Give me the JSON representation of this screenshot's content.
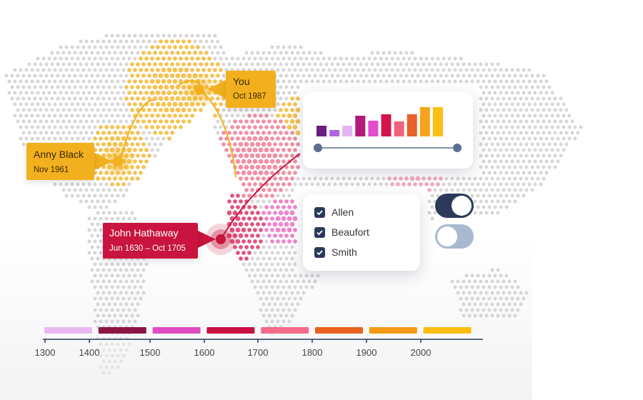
{
  "map": {
    "dot_color": "#cfcfd1"
  },
  "people": [
    {
      "name": "You",
      "dates": "Oct 1987",
      "color": "#f2b01e"
    },
    {
      "name": "Anny Black",
      "dates": "Nov 1961",
      "color": "#f2b01e"
    },
    {
      "name": "John Hathaway",
      "dates": "Jun 1630 – Oct 1705",
      "color": "#c8143e"
    }
  ],
  "chart_data": {
    "type": "bar",
    "values": [
      15,
      9,
      15,
      29,
      22,
      31,
      21,
      31,
      41,
      41
    ],
    "colors": [
      "#6a1f7e",
      "#b264e0",
      "#e3b4f4",
      "#b5197a",
      "#e24ccd",
      "#d2154d",
      "#f0627a",
      "#e8612a",
      "#f6a41c",
      "#fbbf14"
    ],
    "slider_color": "#5b6f8f"
  },
  "filters": [
    {
      "label": "Allen",
      "checked": true
    },
    {
      "label": "Beaufort",
      "checked": true
    },
    {
      "label": "Smith",
      "checked": true
    }
  ],
  "toggles": [
    {
      "state": "on",
      "color": "#2b3a5a"
    },
    {
      "state": "off",
      "color": "#a8b9d0"
    }
  ],
  "timeline": {
    "ticks": [
      "1300",
      "1400",
      "1500",
      "1600",
      "1700",
      "1800",
      "1900",
      "2000"
    ],
    "segment_colors": [
      "#e9b8f0",
      "#8e1444",
      "#e24cc0",
      "#c8103f",
      "#f46b89",
      "#e8611c",
      "#f49a14",
      "#fbbd12"
    ],
    "axis_color": "#2b3a5a"
  },
  "icons": {
    "check": "check-icon"
  }
}
